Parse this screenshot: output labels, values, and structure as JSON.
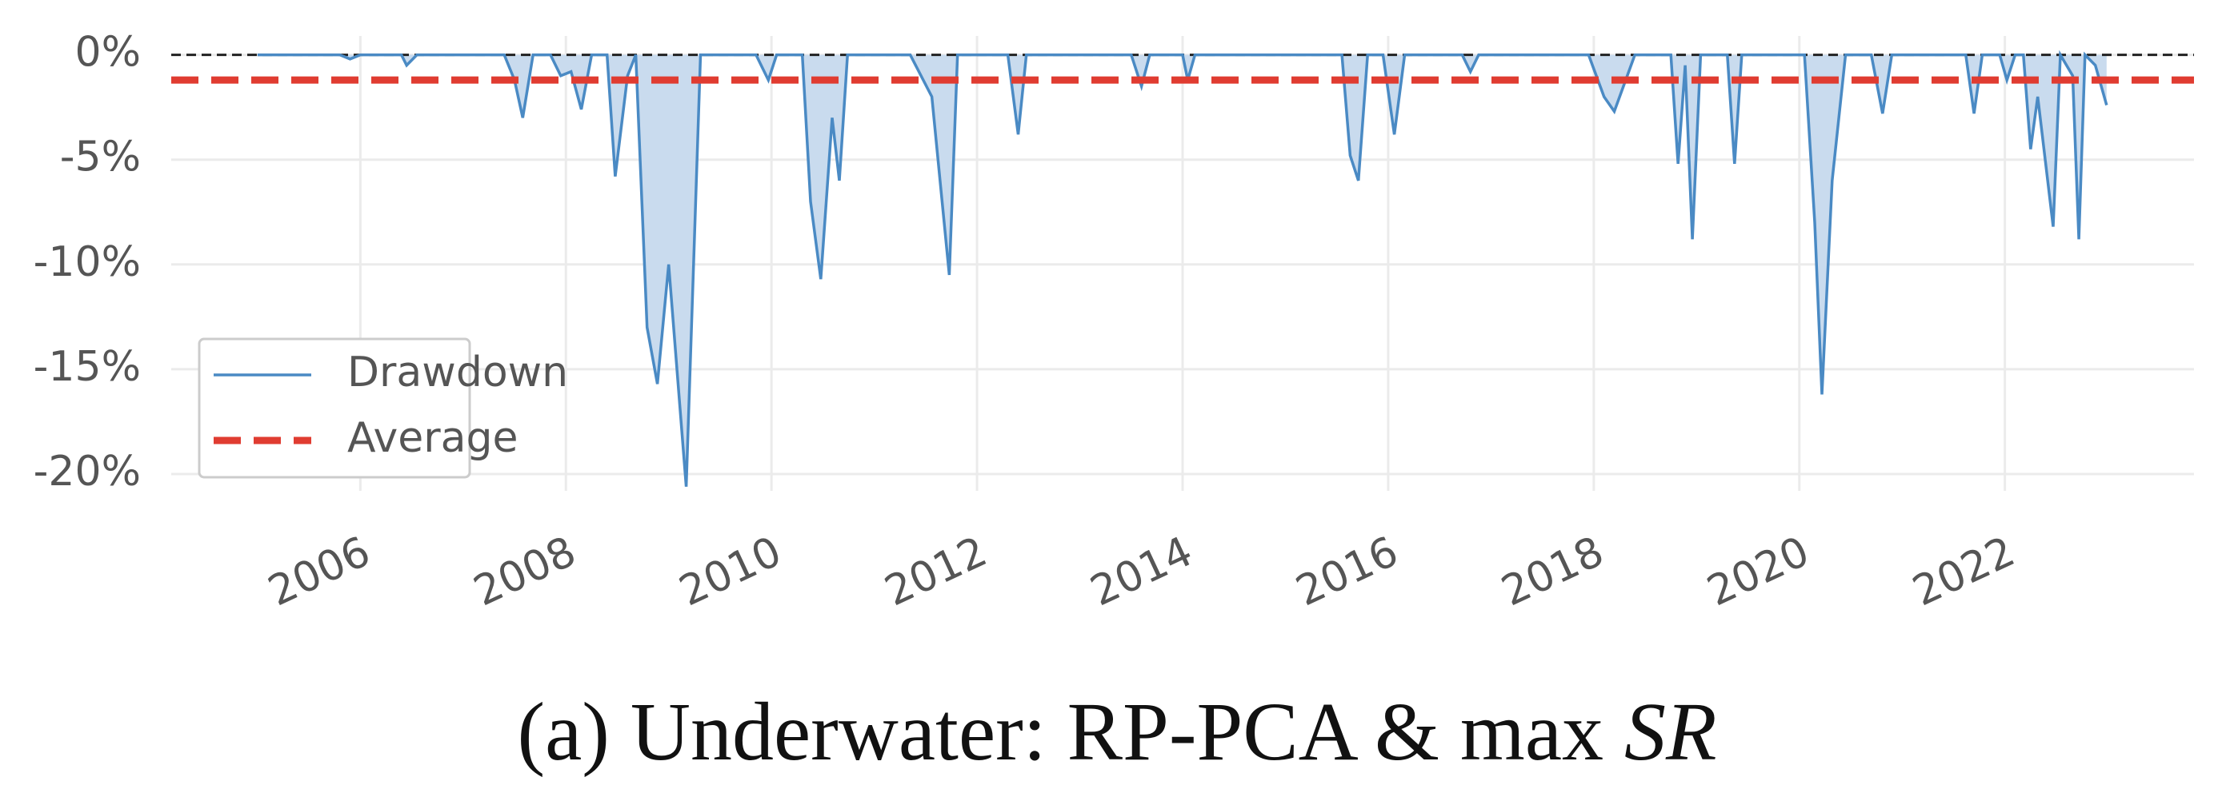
{
  "chart_data": {
    "type": "underwater",
    "caption": {
      "text": "(a) Underwater: RP-PCA & max",
      "math": "SR"
    },
    "xlim": [
      2004.16,
      2023.84
    ],
    "xticks": [
      2006,
      2008,
      2010,
      2012,
      2014,
      2016,
      2018,
      2020,
      2022
    ],
    "ylim": [
      -20.8,
      0.9
    ],
    "yticks": [
      {
        "value": 0,
        "label": "0%"
      },
      {
        "value": -5,
        "label": "-5%"
      },
      {
        "value": -10,
        "label": "-10%"
      },
      {
        "value": -15,
        "label": "-15%"
      },
      {
        "value": -20,
        "label": "-20%"
      }
    ],
    "grid": true,
    "legend": "lower left",
    "series": [
      {
        "name": "Drawdown",
        "color": "#4a8ac4",
        "fill": "#c9dbee",
        "x": [
          2005.0,
          2005.8,
          2005.9,
          2006.0,
          2006.4,
          2006.45,
          2006.55,
          2007.4,
          2007.5,
          2007.58,
          2007.68,
          2007.85,
          2007.95,
          2008.05,
          2008.15,
          2008.25,
          2008.4,
          2008.48,
          2008.6,
          2008.68,
          2008.79,
          2008.89,
          2009.0,
          2009.17,
          2009.31,
          2009.85,
          2009.97,
          2010.05,
          2010.3,
          2010.38,
          2010.48,
          2010.59,
          2010.66,
          2010.74,
          2011.35,
          2011.56,
          2011.73,
          2011.81,
          2012.3,
          2012.4,
          2012.48,
          2013.5,
          2013.6,
          2013.68,
          2014.0,
          2014.05,
          2014.12,
          2015.55,
          2015.63,
          2015.71,
          2015.8,
          2015.95,
          2016.06,
          2016.16,
          2016.72,
          2016.8,
          2016.88,
          2017.95,
          2018.1,
          2018.2,
          2018.4,
          2018.75,
          2018.82,
          2018.89,
          2018.96,
          2019.04,
          2019.3,
          2019.37,
          2019.44,
          2020.05,
          2020.15,
          2020.22,
          2020.32,
          2020.45,
          2020.7,
          2020.81,
          2020.9,
          2021.62,
          2021.7,
          2021.78,
          2021.95,
          2022.02,
          2022.1,
          2022.18,
          2022.25,
          2022.32,
          2022.47,
          2022.54,
          2022.66,
          2022.72,
          2022.78,
          2022.88,
          2022.99
        ],
        "values": [
          0,
          0,
          -0.2,
          0,
          0,
          -0.5,
          0,
          0,
          -1.2,
          -3.0,
          0,
          0,
          -1.0,
          -0.8,
          -2.6,
          0,
          0,
          -5.8,
          -1.0,
          0,
          -13.0,
          -15.7,
          -10.0,
          -20.6,
          0,
          0,
          -1.2,
          0,
          0,
          -7.0,
          -10.7,
          -3.0,
          -6.0,
          0,
          0,
          -2.0,
          -10.5,
          0,
          0,
          -3.8,
          0,
          0,
          -1.5,
          0,
          0,
          -1.2,
          0,
          0,
          -4.8,
          -6.0,
          0,
          0,
          -3.8,
          0,
          0,
          -0.8,
          0,
          0,
          -2.0,
          -2.7,
          0,
          0,
          -5.2,
          -0.5,
          -8.8,
          0,
          0,
          -5.2,
          0,
          0,
          -8.0,
          -16.2,
          -6.0,
          0,
          0,
          -2.8,
          0,
          0,
          -2.8,
          0,
          0,
          -1.2,
          0,
          0,
          -4.5,
          -2.0,
          -8.2,
          0,
          -1.0,
          -8.8,
          0,
          -0.5,
          -2.4
        ]
      },
      {
        "name": "Average",
        "color": "#e03c31",
        "value": -1.2
      }
    ]
  }
}
